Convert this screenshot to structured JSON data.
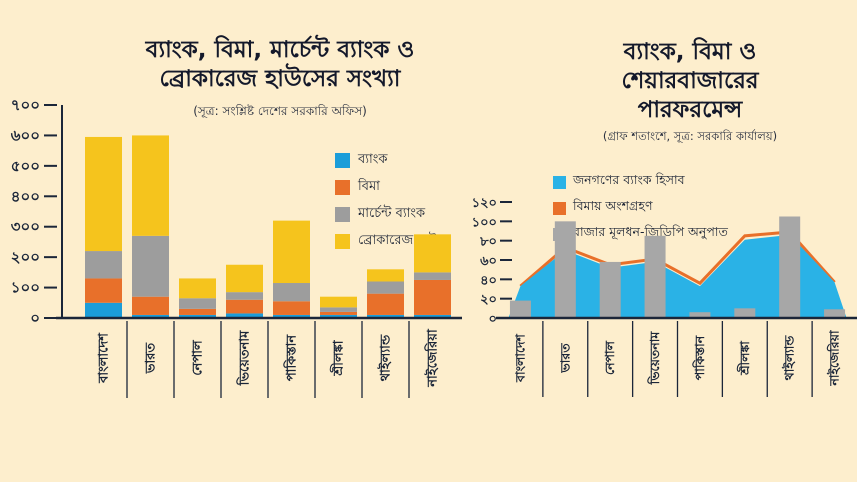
{
  "colors": {
    "background": "#fdeecd",
    "axis": "#1b2639",
    "text": "#1a2233",
    "bank_blue": "#1b9dd9",
    "insurance_orange": "#e8702a",
    "merchant_gray": "#9d9d9d",
    "brokerage_yellow": "#f5c41d",
    "bank_account_cyan": "#2ab2e6",
    "mcap_gray": "#a7a7a7"
  },
  "chart_data": [
    {
      "type": "bar",
      "stacked": true,
      "title_lines": [
        "ব্যাংক, বিমা, মার্চেন্ট ব্যাংক ও",
        "ব্রোকারেজ হাউসের সংখ্যা"
      ],
      "subtitle": "(সূত্র: সংশ্লিষ্ট দেশের সরকারি অফিস)",
      "categories": [
        "বাংলাদেশ",
        "ভারত",
        "নেপাল",
        "ভিয়েতনাম",
        "পাকিস্তান",
        "শ্রীলঙ্কা",
        "থাইল্যান্ড",
        "নাইজেরিয়া"
      ],
      "series": [
        {
          "name": "ব্যাংক",
          "color": "#1b9dd9",
          "values": [
            50,
            10,
            10,
            15,
            10,
            10,
            10,
            10
          ]
        },
        {
          "name": "বিমা",
          "color": "#e8702a",
          "values": [
            80,
            60,
            20,
            45,
            45,
            10,
            70,
            115
          ]
        },
        {
          "name": "মার্চেন্ট ব্যাংক",
          "color": "#9d9d9d",
          "values": [
            90,
            200,
            35,
            25,
            60,
            15,
            40,
            25
          ]
        },
        {
          "name": "ব্রোকারেজ হাউস",
          "color": "#f5c41d",
          "values": [
            375,
            330,
            65,
            90,
            205,
            35,
            40,
            125
          ]
        }
      ],
      "ylim": [
        0,
        700
      ],
      "yticks": [
        0,
        100,
        200,
        300,
        400,
        500,
        600,
        700
      ],
      "ytick_labels": [
        "০",
        "১০০",
        "২০০",
        "৩০০",
        "৪০০",
        "৫০০",
        "৬০০",
        "৭০০"
      ],
      "grid": false,
      "legend_position": "inside-top-right"
    },
    {
      "type": "area",
      "title_lines": [
        "ব্যাংক, বিমা ও",
        "শেয়ারবাজারের",
        "পারফরমেন্স"
      ],
      "subtitle": "(গ্রাফ শতাংশে, সূত্র: সরকারি কার্যালয়)",
      "categories": [
        "বাংলাদেশ",
        "ভারত",
        "নেপাল",
        "ভিয়েতনাম",
        "পাকিস্তান",
        "শ্রীলঙ্কা",
        "থাইল্যান্ড",
        "নাইজেরিয়া"
      ],
      "series": [
        {
          "name": "জনগণের ব্যাংক হিসাব",
          "type": "area",
          "color": "#2ab2e6",
          "values": [
            33,
            70,
            52,
            58,
            33,
            81,
            86,
            37
          ]
        },
        {
          "name": "বিমায় অংশগ্রহণ",
          "type": "line",
          "color": "#e8702a",
          "values": [
            33,
            73,
            55,
            61,
            36,
            85,
            89,
            37
          ]
        },
        {
          "name": "বাজার মূলধন-জিডিপি অনুপাত",
          "type": "bar",
          "color": "#a7a7a7",
          "values": [
            18,
            100,
            58,
            85,
            6,
            10,
            105,
            9
          ]
        }
      ],
      "ylim": [
        0,
        130
      ],
      "yticks": [
        0,
        20,
        40,
        60,
        80,
        100,
        120
      ],
      "ytick_labels": [
        "০",
        "২০",
        "৪০",
        "৬০",
        "৮০",
        "১০০",
        "১২০"
      ],
      "grid": false,
      "legend_position": "above-plot"
    }
  ]
}
